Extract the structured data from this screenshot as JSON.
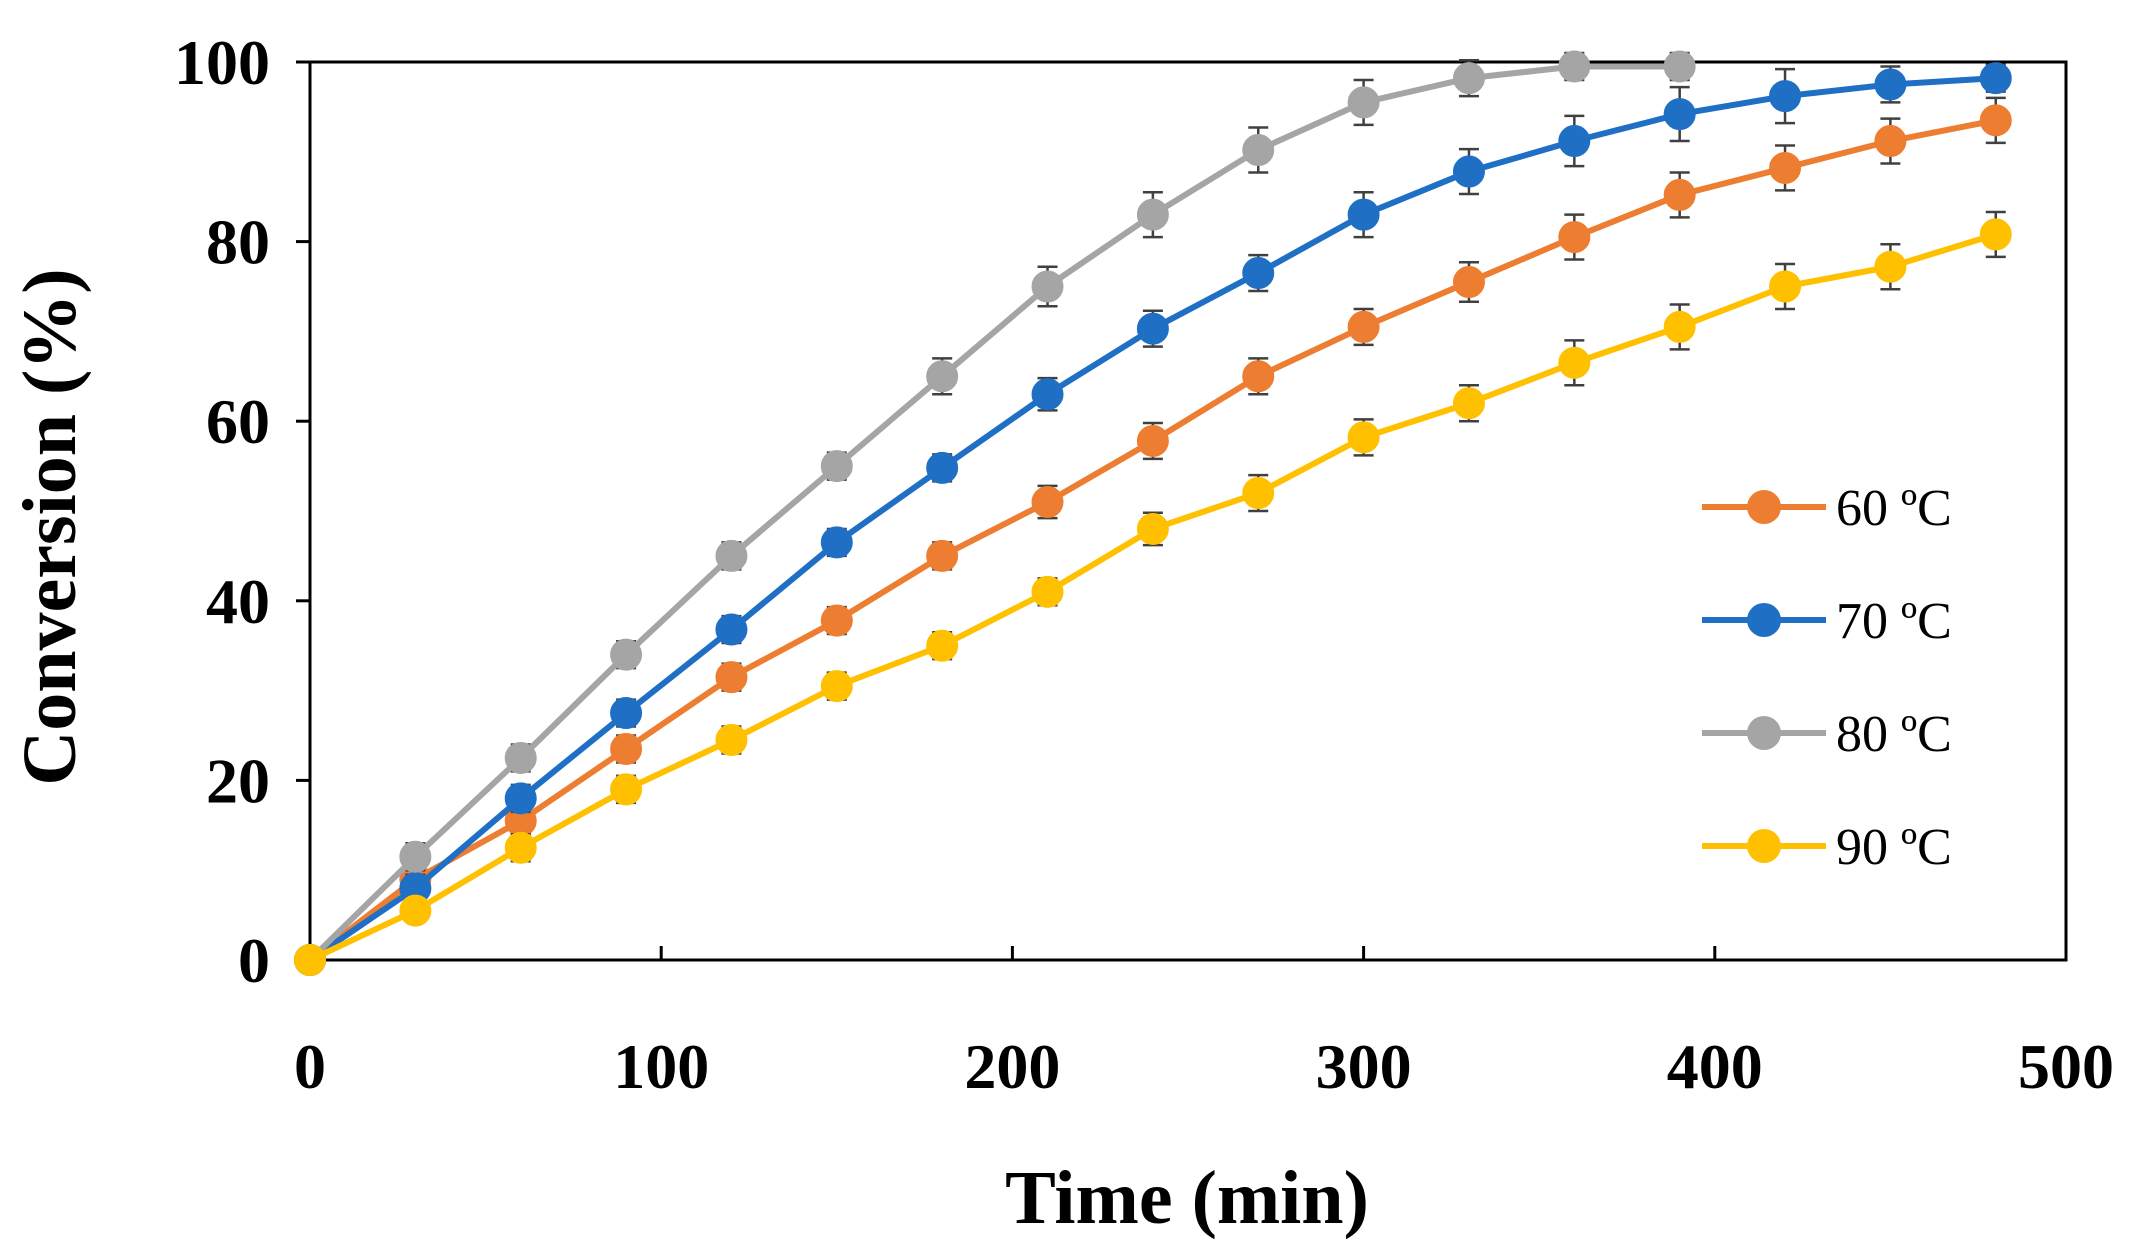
{
  "chart_data": {
    "type": "line",
    "title": "",
    "xlabel": "Time (min)",
    "ylabel": "Conversion (%)",
    "xlim": [
      0,
      500
    ],
    "ylim": [
      0,
      100
    ],
    "xticks": [
      "0",
      "100",
      "200",
      "300",
      "400",
      "500"
    ],
    "yticks": [
      "0",
      "20",
      "40",
      "60",
      "80",
      "100"
    ],
    "grid": false,
    "legend_position": "right",
    "x": [
      0,
      30,
      60,
      90,
      120,
      150,
      180,
      210,
      240,
      270,
      300,
      330,
      360,
      390,
      420,
      450,
      480
    ],
    "series": [
      {
        "name": "60 ºC",
        "color": "#ED7D31",
        "values": [
          0,
          9,
          15.5,
          23.5,
          31.5,
          37.8,
          45,
          51,
          57.8,
          65,
          70.5,
          75.5,
          80.5,
          85.2,
          88.2,
          91.2,
          93.5
        ],
        "errors": [
          0,
          1.5,
          1.5,
          1.5,
          1.5,
          1.5,
          1.5,
          1.8,
          2,
          2,
          2,
          2.2,
          2.5,
          2.5,
          2.5,
          2.5,
          2.5
        ]
      },
      {
        "name": "70 ºC",
        "color": "#1F6FC5",
        "values": [
          0,
          8,
          18,
          27.5,
          36.8,
          46.5,
          54.8,
          63,
          70.3,
          76.5,
          83,
          87.8,
          91.2,
          94.2,
          96.2,
          97.5,
          98.2
        ],
        "errors": [
          0,
          1.5,
          1.5,
          1.5,
          1.5,
          1.5,
          1.5,
          1.8,
          2,
          2,
          2.5,
          2.5,
          2.8,
          3,
          3,
          2,
          1.5
        ]
      },
      {
        "name": "80 ºC",
        "color": "#A5A5A5",
        "values": [
          0,
          11.5,
          22.5,
          34,
          45,
          55,
          65,
          75,
          83,
          90.2,
          95.5,
          98.2,
          99.5,
          99.5,
          null,
          null,
          null
        ],
        "errors": [
          0,
          1.5,
          1.5,
          1.5,
          1.5,
          1.5,
          2,
          2.2,
          2.5,
          2.5,
          2.5,
          2,
          1.5,
          1.5,
          0,
          0,
          0
        ]
      },
      {
        "name": "90 ºC",
        "color": "#FFC000",
        "values": [
          0,
          5.5,
          12.5,
          19,
          24.5,
          30.5,
          35,
          41,
          48,
          52,
          58.2,
          62,
          66.5,
          70.5,
          75,
          77.2,
          80.8
        ],
        "errors": [
          0,
          1.2,
          1.5,
          1.5,
          1.5,
          1.5,
          1.5,
          1.5,
          1.8,
          2,
          2,
          2,
          2.5,
          2.5,
          2.5,
          2.5,
          2.5
        ]
      }
    ]
  }
}
